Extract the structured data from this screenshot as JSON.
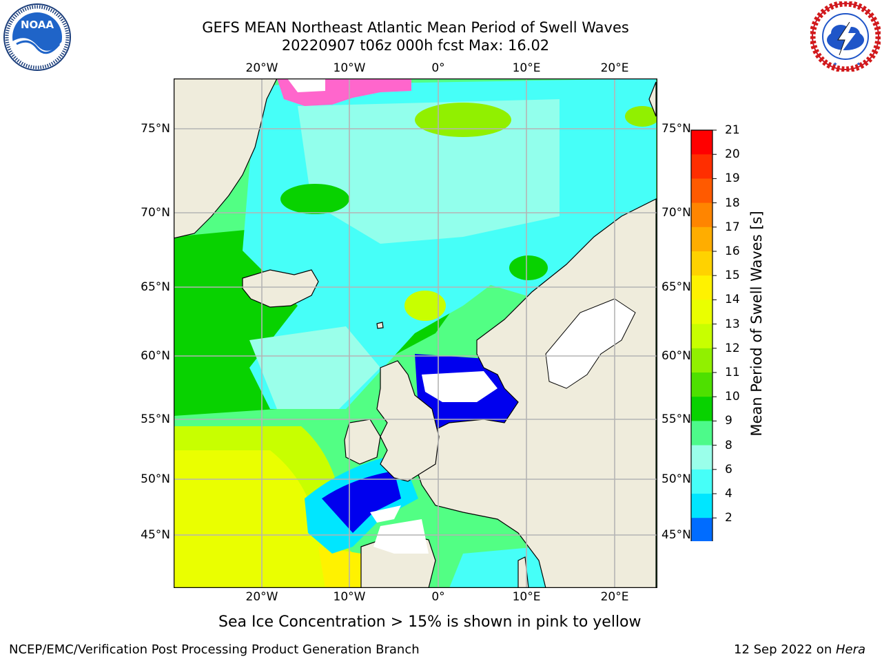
{
  "header": {
    "title_line1": "GEFS MEAN Northeast Atlantic Mean Period of Swell Waves",
    "title_line2": "20220907 t06z 000h fcst   Max: 16.02"
  },
  "logos": {
    "left": {
      "name": "NOAA",
      "ring_text": "NATIONAL OCEANIC AND ATMOSPHERIC ADMINISTRATION · U.S. DEPARTMENT OF COMMERCE"
    },
    "right": {
      "name": "NATIONAL WEATHER SERVICE"
    }
  },
  "map": {
    "x_ticks": [
      "20°W",
      "10°W",
      "0°",
      "10°E",
      "20°E"
    ],
    "y_ticks": [
      "75°N",
      "70°N",
      "65°N",
      "60°N",
      "55°N",
      "50°N",
      "45°N"
    ],
    "grid": true,
    "land_color": "#efecdc",
    "grid_color": "#b4b4b4"
  },
  "colorbar": {
    "label": "Mean Period of Swell Waves [s]",
    "ticks": [
      "21",
      "20",
      "19",
      "18",
      "17",
      "16",
      "15",
      "14",
      "13",
      "12",
      "11",
      "10",
      "9",
      "8",
      "6",
      "4",
      "2"
    ],
    "colors_top_to_bottom": [
      "#ff0000",
      "#ff2e00",
      "#ff5a00",
      "#ff8500",
      "#ffad00",
      "#ffd200",
      "#fff200",
      "#eaff00",
      "#c8ff00",
      "#91f000",
      "#4ee000",
      "#08d200",
      "#4dfa8a",
      "#9affea",
      "#46fff8",
      "#00e6ff",
      "#006cff"
    ],
    "extend_color": "#0000ee"
  },
  "footer": {
    "note": "Sea Ice Concentration > 15% is shown in pink to yellow",
    "left": "NCEP/EMC/Verification Post Processing Product Generation Branch",
    "right_date": "12 Sep 2022 on ",
    "right_host": "Hera"
  }
}
